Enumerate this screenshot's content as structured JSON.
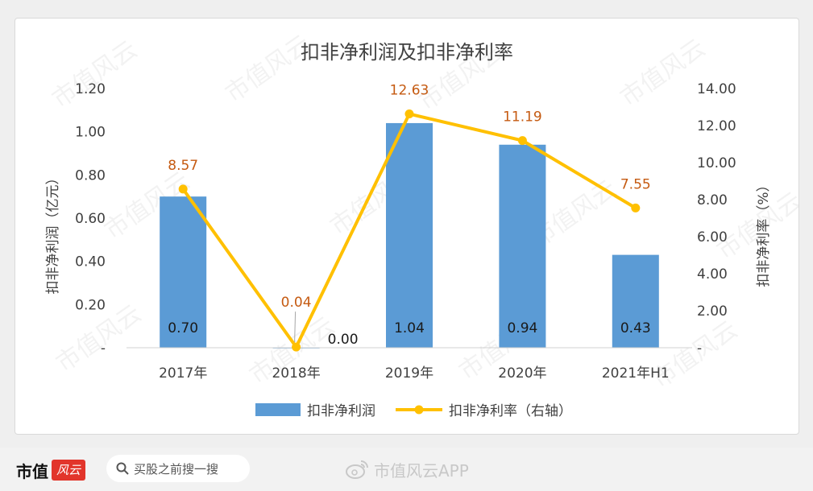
{
  "footer": {
    "brand": "市值",
    "brand_logo": "风云",
    "search_placeholder": "买股之前搜一搜",
    "app_label": "市值风云APP",
    "icons": {
      "search": "search-icon",
      "app": "weibo-icon"
    }
  },
  "watermark": "市值风云",
  "chart_data": {
    "type": "bar",
    "title": "扣非净利润及扣非净利率",
    "categories": [
      "2017年",
      "2018年",
      "2019年",
      "2020年",
      "2021年H1"
    ],
    "series": [
      {
        "name": "扣非净利润",
        "type": "bar",
        "axis": "left",
        "color": "#5b9bd5",
        "values": [
          0.7,
          0.0,
          1.04,
          0.94,
          0.43
        ],
        "labels": [
          "0.70",
          "0.00",
          "1.04",
          "0.94",
          "0.43"
        ]
      },
      {
        "name": "扣非净利率（右轴）",
        "type": "line",
        "axis": "right",
        "color": "#ffc000",
        "values": [
          8.57,
          0.04,
          12.63,
          11.19,
          7.55
        ],
        "labels": [
          "8.57",
          "0.04",
          "12.63",
          "11.19",
          "7.55"
        ]
      }
    ],
    "ylabel": "扣非净利润（亿元）",
    "y2label": "扣非净利率（%）",
    "ylim": [
      0,
      1.2
    ],
    "y2lim": [
      0,
      14
    ],
    "yticks": [
      "-",
      "0.20",
      "0.40",
      "0.60",
      "0.80",
      "1.00",
      "1.20"
    ],
    "y2ticks": [
      "-",
      "2.00",
      "4.00",
      "6.00",
      "8.00",
      "10.00",
      "12.00",
      "14.00"
    ],
    "line_label_color": "#c55a11",
    "grid": false,
    "legend": "bottom"
  }
}
